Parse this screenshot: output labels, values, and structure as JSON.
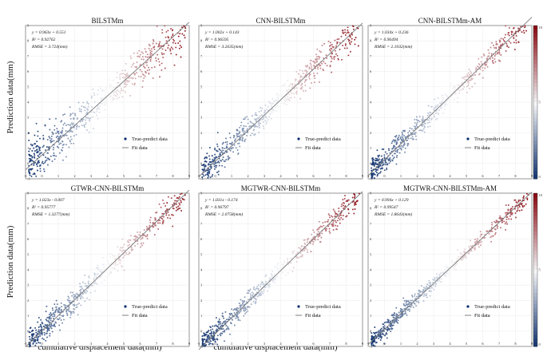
{
  "figure": {
    "y_label": "Prediction data(mm)",
    "x_label": "cumulative displacement data(mm)"
  },
  "legend": {
    "points": "True-predict data",
    "fit": "Fit data"
  },
  "colorbar": {
    "top_label": "10",
    "mid_label": "5",
    "bottom_label": "0"
  },
  "chart_data": [
    {
      "type": "scatter",
      "title": "BILSTMm",
      "xlim": [
        -1,
        9
      ],
      "ylim": [
        -1,
        9
      ],
      "xticks": [
        -1,
        0,
        1,
        2,
        3,
        4,
        5,
        6,
        7,
        8,
        9
      ],
      "yticks": [
        -1,
        0,
        1,
        2,
        3,
        4,
        5,
        6,
        7,
        8,
        9
      ],
      "fit": {
        "slope": 0.963,
        "intercept": 0.551
      },
      "stats": {
        "equation": "y = 0.963x + 0.551",
        "r2": "R² = 0.92762",
        "rmse": "RMSE = 3.724(mm)"
      },
      "scatter_spread": 0.75,
      "legend_position": "lower-right"
    },
    {
      "type": "scatter",
      "title": "CNN-BILSTMm",
      "xlim": [
        -1,
        9
      ],
      "ylim": [
        -1,
        9
      ],
      "xticks": [
        -1,
        0,
        1,
        2,
        3,
        4,
        5,
        6,
        7,
        8,
        9
      ],
      "yticks": [
        -1,
        0,
        1,
        2,
        3,
        4,
        5,
        6,
        7,
        8,
        9
      ],
      "fit": {
        "slope": 1.002,
        "intercept": 0.143
      },
      "stats": {
        "equation": "y = 1.002x + 0.143",
        "r2": "R² = 0.96595",
        "rmse": "RMSE = 3.2635(mm)"
      },
      "scatter_spread": 0.55,
      "legend_position": "lower-right"
    },
    {
      "type": "scatter",
      "title": "CNN-BILSTMm-AM",
      "xlim": [
        -1,
        9
      ],
      "ylim": [
        -1,
        9
      ],
      "xticks": [
        -1,
        0,
        1,
        2,
        3,
        4,
        5,
        6,
        7,
        8,
        9
      ],
      "yticks": [
        -1,
        0,
        1,
        2,
        3,
        4,
        5,
        6,
        7,
        8,
        9
      ],
      "fit": {
        "slope": 1.034,
        "intercept": 0.236
      },
      "stats": {
        "equation": "y = 1.034x + 0.236",
        "r2": "R² = 0.96494",
        "rmse": "RMSE = 2.1032(mm)"
      },
      "scatter_spread": 0.45,
      "legend_position": "lower-right"
    },
    {
      "type": "scatter",
      "title": "GTWR-CNN-BILSTMm",
      "xlim": [
        -1,
        9
      ],
      "ylim": [
        -1,
        9
      ],
      "xticks": [
        -1,
        0,
        1,
        2,
        3,
        4,
        5,
        6,
        7,
        8,
        9
      ],
      "yticks": [
        -1,
        0,
        1,
        2,
        3,
        4,
        5,
        6,
        7,
        8,
        9
      ],
      "fit": {
        "slope": 1.023,
        "intercept": -0.007
      },
      "stats": {
        "equation": "y = 1.023x - 0.007",
        "r2": "R² = 0.95777",
        "rmse": "RMSE = 1.3277(mm)"
      },
      "scatter_spread": 0.5,
      "legend_position": "lower-right"
    },
    {
      "type": "scatter",
      "title": "MGTWR-CNN-BILSTMm",
      "xlim": [
        -1,
        9
      ],
      "ylim": [
        -1,
        9
      ],
      "xticks": [
        -1,
        0,
        1,
        2,
        3,
        4,
        5,
        6,
        7,
        8,
        9
      ],
      "yticks": [
        -1,
        0,
        1,
        2,
        3,
        4,
        5,
        6,
        7,
        8,
        9
      ],
      "fit": {
        "slope": 1.031,
        "intercept": -0.174
      },
      "stats": {
        "equation": "y = 1.031x - 0.174",
        "r2": "R² = 0.96797",
        "rmse": "RMSE = 2.0758(mm)"
      },
      "scatter_spread": 0.4,
      "legend_position": "lower-right"
    },
    {
      "type": "scatter",
      "title": "MGTWR-CNN-BILSTMm-AM",
      "xlim": [
        -1,
        9
      ],
      "ylim": [
        -1,
        9
      ],
      "xticks": [
        -1,
        0,
        1,
        2,
        3,
        4,
        5,
        6,
        7,
        8,
        9
      ],
      "yticks": [
        -1,
        0,
        1,
        2,
        3,
        4,
        5,
        6,
        7,
        8,
        9
      ],
      "fit": {
        "slope": 0.994,
        "intercept": 0.129
      },
      "stats": {
        "equation": "y = 0.994x + 0.129",
        "r2": "R² = 0.99547",
        "rmse": "RMSE = 1.8643(mm)"
      },
      "scatter_spread": 0.3,
      "legend_position": "lower-right"
    }
  ],
  "colors": {
    "low": "#0b2e6b",
    "mid": "#f4f6f8",
    "high": "#8a0a12",
    "fit_line": "#7a7a7a",
    "grid": "#e6e6e6"
  }
}
